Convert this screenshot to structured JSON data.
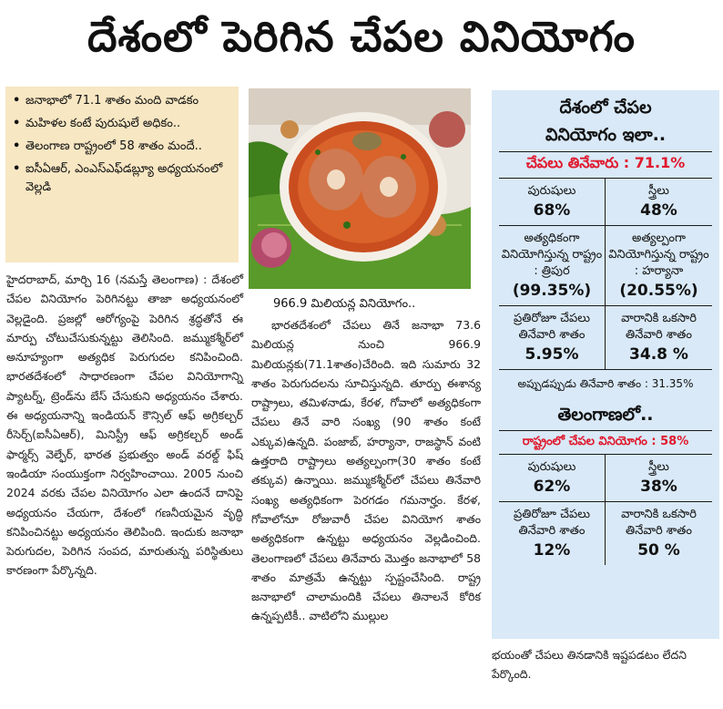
{
  "headline": "దేశంలో పెరిగిన చేపల వినియోగం",
  "bullets": [
    "జనాభాలో 71.1 శాతం మంది వాడకం",
    "మహిళల కంటే పురుషులే అధికం..",
    "తెలంగాణ రాష్ట్రంలో 58 శాతం మందే..",
    "ఐసీఏఆర్, ఎంఎస్‌ఎఫ్‌డబ్ల్యూ అధ్యయనంలో వెల్లడి"
  ],
  "photo_caption": "966.9 మిలియన్ల వినియోగం..",
  "column1": "హైదరాబాద్, మార్చి 16 (నమస్తే తెలంగాణ) : దేశంలో చేపల వినియోగం పెరిగినట్టు తాజా అధ్యయనంలో వెల్లడైంది. ప్రజల్లో ఆరోగ్యంపై పెరిగిన శ్రద్ధతోనే ఈ మార్పు చోటుచేసుకున్నట్టు తెలిసింది. జమ్ముకశ్మీర్‌లో అనూహ్యంగా అత్యధిక పెరుగుదల కనిపించింది. భారతదేశంలో సాధారణంగా చేపల వినియోగాన్ని ప్యాటర్న్, ట్రెండ్‌ను బేస్ చేసుకుని అధ్యయనం చేశారు. ఈ అధ్యయనాన్ని ఇండియన్ కౌన్సిల్ ఆఫ్ అగ్రికల్చర్ రీసెర్చ్(ఐసీఏఆర్), మినిస్ట్రీ ఆఫ్ అగ్రికల్చర్ అండ్ ఫార్మర్స్ వెల్ఫేర్, భారత ప్రభుత్వం అండ్ వరల్డ్ ఫిష్ ఇండియా సంయుక్తంగా నిర్వహించాయి. 2005 నుంచి 2024 వరకు చేపల వినియోగం ఎలా ఉందనే దానిపై అధ్యయనం చేయగా, దేశంలో గణనీయమైన వృద్ధి కనిపించినట్టు అధ్యయనం తెలిపింది. ఇందుకు జనాభా పెరుగుదల, పెరిగిన సంపద, మారుతున్న పరిస్థితులు కారణంగా పేర్కొన్నది.",
  "column2": "భారతదేశంలో చేపలు తినే జనాభా 73.6 మిలియన్ల నుంచి 966.9 మిలియన్లకు(71.1శాతం)చేరింది. ఇది సుమారు 32 శాతం పెరుగుదలను సూచిస్తున్నది. తూర్పు ఈశాన్య రాష్ట్రాలు, తమిళనాడు, కేరళ, గోవాలో అత్యధికంగా చేపలు తినే వారి సంఖ్య (90 శాతం కంటే ఎక్కువ)ఉన్నది. పంజాబ్, హర్యానా, రాజస్థాన్ వంటి ఉత్తరాది రాష్ట్రాలు అత్యల్పంగా(30 శాతం కంటే తక్కువ) ఉన్నాయి. జమ్ముకశ్మీర్‌లో చేపలు తినేవారి సంఖ్య అత్యధికంగా పెరగడం గమనార్హం. కేరళ, గోవాలోనూ రోజువారీ చేపల వినియోగ శాతం అత్యధికంగా ఉన్నట్టు అధ్యయనం వెల్లడించింది. తెలంగాణలో చేపలు తినేవారు మొత్తం జనాభాలో 58 శాతం మాత్రమే ఉన్నట్టు స్పష్టంచేసింది. రాష్ట్ర జనాభాలో చాలామందికి చేపలు తినాలనే కోరిక ఉన్నప్పటికీ.. వాటిలోని ముల్లుల",
  "sidebar": {
    "title_line1": "దేశంలో చేపల",
    "title_line2": "వినియోగం ఇలా..",
    "highlight": "చేపలు తినేవారు : 71.1%",
    "india_stats": [
      {
        "label": "పురుషులు",
        "value": "68%"
      },
      {
        "label": "స్త్రీలు",
        "value": "48%"
      },
      {
        "label": "అత్యధికంగా వినియోగిస్తున్న రాష్ట్రం : త్రిపుర",
        "value": "(99.35%)"
      },
      {
        "label": "అత్యల్పంగా వినియోగిస్తున్న రాష్ట్రం : హర్యానా",
        "value": "(20.55%)"
      },
      {
        "label": "ప్రతిరోజూ చేపలు తినేవారి శాతం",
        "value": "5.95%"
      },
      {
        "label": "వారానికి ఒకసారి తినేవారి శాతం",
        "value": "34.8 %"
      }
    ],
    "occasional": "అప్పుడప్పుడు తినేవారి శాతం : 31.35%",
    "telangana_title": "తెలంగాణలో..",
    "telangana_highlight": "రాష్ట్రంలో చేపల వినియోగం : 58%",
    "telangana_stats": [
      {
        "label": "పురుషులు",
        "value": "62%"
      },
      {
        "label": "స్త్రీలు",
        "value": "38%"
      },
      {
        "label": "ప్రతిరోజూ చేపలు తినేవారి శాతం",
        "value": "12%"
      },
      {
        "label": "వారానికి ఒకసారి తినేవారి శాతం",
        "value": "50 %"
      }
    ]
  },
  "closing": "భయంతో చేపలు తినడానికి ఇష్టపడటం లేదని పేర్కొంది."
}
